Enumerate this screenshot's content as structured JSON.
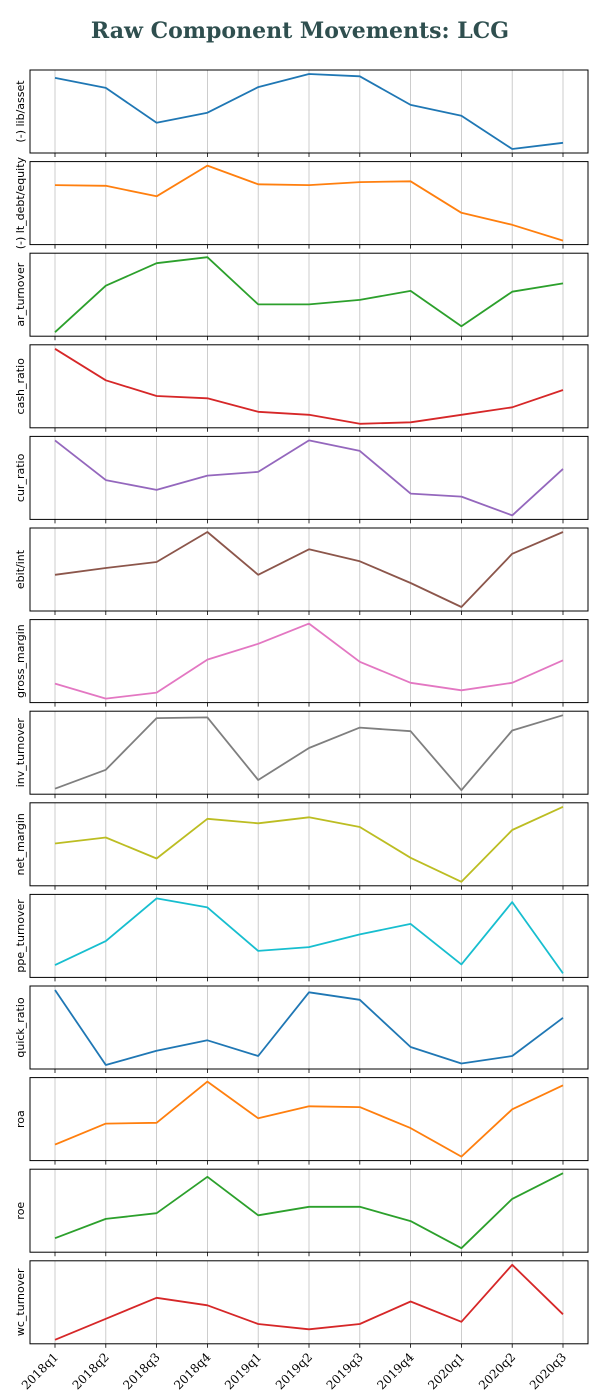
{
  "chart_data": {
    "type": "line",
    "title": "Raw Component Movements: LCG",
    "x": [
      "2018q1",
      "2018q2",
      "2018q3",
      "2018q4",
      "2019q1",
      "2019q2",
      "2019q3",
      "2019q4",
      "2020q1",
      "2020q2",
      "2020q3"
    ],
    "grid": "vertical",
    "series": [
      {
        "name": "(-) lib/asset",
        "color": "#1f77b4",
        "values": [
          0.95,
          0.82,
          0.37,
          0.5,
          0.83,
          1.0,
          0.97,
          0.6,
          0.46,
          0.03,
          0.11
        ]
      },
      {
        "name": "(-) lt_debt/equity",
        "color": "#ff7f0e",
        "values": [
          0.74,
          0.73,
          0.59,
          1.0,
          0.75,
          0.74,
          0.78,
          0.79,
          0.37,
          0.21,
          0.0
        ]
      },
      {
        "name": "ar_turnover",
        "color": "#2ca02c",
        "values": [
          0.0,
          0.62,
          0.92,
          1.0,
          0.37,
          0.37,
          0.43,
          0.55,
          0.08,
          0.54,
          0.65
        ]
      },
      {
        "name": "cash_ratio",
        "color": "#d62728",
        "values": [
          1.0,
          0.58,
          0.37,
          0.34,
          0.16,
          0.12,
          0.0,
          0.02,
          0.12,
          0.22,
          0.45
        ]
      },
      {
        "name": "cur_ratio",
        "color": "#9467bd",
        "values": [
          1.0,
          0.47,
          0.34,
          0.53,
          0.58,
          1.0,
          0.86,
          0.29,
          0.25,
          0.0,
          0.62
        ]
      },
      {
        "name": "ebit/int",
        "color": "#8c564b",
        "values": [
          0.43,
          0.52,
          0.6,
          1.0,
          0.43,
          0.77,
          0.61,
          0.32,
          0.0,
          0.71,
          1.0
        ]
      },
      {
        "name": "gross_margin",
        "color": "#e377c2",
        "values": [
          0.2,
          0.0,
          0.08,
          0.52,
          0.73,
          1.0,
          0.49,
          0.21,
          0.11,
          0.21,
          0.51
        ]
      },
      {
        "name": "inv_turnover",
        "color": "#7f7f7f",
        "values": [
          0.02,
          0.28,
          0.99,
          1.0,
          0.14,
          0.58,
          0.86,
          0.81,
          0.0,
          0.82,
          1.03
        ]
      },
      {
        "name": "net_margin",
        "color": "#bcbd22",
        "values": [
          0.51,
          0.59,
          0.31,
          0.84,
          0.78,
          0.86,
          0.73,
          0.32,
          0.0,
          0.69,
          1.0
        ]
      },
      {
        "name": "ppe_turnover",
        "color": "#17becf",
        "values": [
          0.11,
          0.43,
          1.0,
          0.88,
          0.3,
          0.35,
          0.52,
          0.66,
          0.12,
          0.95,
          0.0
        ]
      },
      {
        "name": "quick_ratio",
        "color": "#1f77b4",
        "values": [
          1.0,
          0.0,
          0.19,
          0.33,
          0.12,
          0.97,
          0.87,
          0.24,
          0.02,
          0.12,
          0.63
        ]
      },
      {
        "name": "roa",
        "color": "#ff7f0e",
        "values": [
          0.16,
          0.44,
          0.45,
          1.0,
          0.51,
          0.67,
          0.66,
          0.38,
          0.0,
          0.63,
          0.95
        ]
      },
      {
        "name": "roe",
        "color": "#2ca02c",
        "values": [
          0.14,
          0.41,
          0.49,
          1.0,
          0.46,
          0.58,
          0.58,
          0.38,
          0.0,
          0.69,
          1.05
        ]
      },
      {
        "name": "wc_turnover",
        "color": "#d62728",
        "values": [
          0.0,
          0.28,
          0.56,
          0.46,
          0.21,
          0.14,
          0.21,
          0.51,
          0.24,
          1.0,
          0.34
        ]
      }
    ]
  }
}
